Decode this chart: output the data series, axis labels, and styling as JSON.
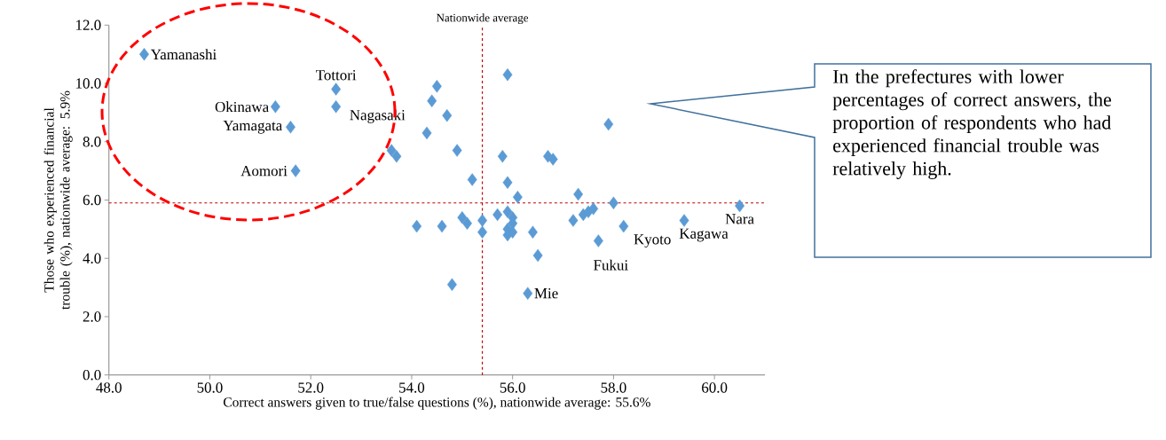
{
  "chart_data": {
    "type": "scatter",
    "xlabel": "Correct answers given to true/false questions (%), nationwide average:  55.6%",
    "ylabel": "Those who experienced  financial trouble (%), nationwide average:  5.9%",
    "x": [
      48.7,
      52.5,
      52.5,
      51.3,
      51.6,
      51.7,
      60.5,
      59.4,
      58.2,
      57.7,
      56.3,
      55.9,
      54.5,
      54.4,
      54.7,
      54.3,
      57.9,
      53.6,
      53.7,
      54.9,
      55.8,
      56.7,
      56.8,
      55.2,
      55.9,
      56.1,
      57.3,
      58.0,
      56.5,
      54.8,
      54.1,
      54.6,
      55.0,
      55.1,
      55.4,
      55.4,
      55.7,
      55.9,
      56.0,
      56.0,
      55.9,
      56.0,
      55.9,
      56.4,
      57.2,
      57.4,
      57.5,
      57.6
    ],
    "values": [
      11.0,
      9.8,
      9.2,
      9.2,
      8.5,
      7.0,
      5.8,
      5.3,
      5.1,
      4.6,
      2.8,
      10.3,
      9.9,
      9.4,
      8.9,
      8.3,
      8.6,
      7.7,
      7.5,
      7.7,
      7.5,
      7.5,
      7.4,
      6.7,
      6.6,
      6.1,
      6.2,
      5.9,
      4.1,
      3.1,
      5.1,
      5.1,
      5.4,
      5.2,
      5.3,
      4.9,
      5.5,
      5.6,
      5.4,
      5.2,
      5.0,
      4.9,
      4.8,
      4.9,
      5.3,
      5.5,
      5.6,
      5.7
    ],
    "color": "#5b9bd5",
    "marker": "diamond",
    "xlim": [
      48,
      61
    ],
    "ylim": [
      0,
      12
    ],
    "xticks": [
      {
        "value": 48,
        "label": "48.0"
      },
      {
        "value": 50,
        "label": "50.0"
      },
      {
        "value": 52,
        "label": "52.0"
      },
      {
        "value": 54,
        "label": "54.0"
      },
      {
        "value": 56,
        "label": "56.0"
      },
      {
        "value": 58,
        "label": "58.0"
      },
      {
        "value": 60,
        "label": "60.0"
      }
    ],
    "yticks": [
      {
        "value": 0,
        "label": "0.0"
      },
      {
        "value": 2,
        "label": "2.0"
      },
      {
        "value": 4,
        "label": "4.0"
      },
      {
        "value": 6,
        "label": "6.0"
      },
      {
        "value": 8,
        "label": "8.0"
      },
      {
        "value": 10,
        "label": "10.0"
      },
      {
        "value": 12,
        "label": "12.0"
      }
    ],
    "ref_lines": [
      {
        "axis": "x",
        "value": 55.4,
        "label": "Nationwide average",
        "color": "#c00000",
        "line_style": "dashed"
      },
      {
        "axis": "y",
        "value": 5.9,
        "color": "#c00000",
        "line_style": "dashed"
      }
    ],
    "annotations": [
      "In the prefectures with lower percentages of correct answers, the proportion of respondents who had experienced financial trouble was relatively high.",
      {
        "text": "Yamanashi",
        "x": 48.7,
        "y": 11.0
      },
      {
        "text": "Tottori",
        "x": 52.5,
        "y": 9.8
      },
      {
        "text": "Nagasaki",
        "x": 52.5,
        "y": 9.2
      },
      {
        "text": "Okinawa",
        "x": 51.3,
        "y": 9.2
      },
      {
        "text": "Yamagata",
        "x": 51.6,
        "y": 8.5
      },
      {
        "text": "Aomori",
        "x": 51.7,
        "y": 7.0
      },
      {
        "text": "Nara",
        "x": 60.5,
        "y": 5.8
      },
      {
        "text": "Kagawa",
        "x": 59.4,
        "y": 5.3
      },
      {
        "text": "Kyoto",
        "x": 58.2,
        "y": 5.1
      },
      {
        "text": "Fukui",
        "x": 57.7,
        "y": 4.6
      },
      {
        "text": "Mie",
        "x": 56.3,
        "y": 2.8
      }
    ]
  }
}
